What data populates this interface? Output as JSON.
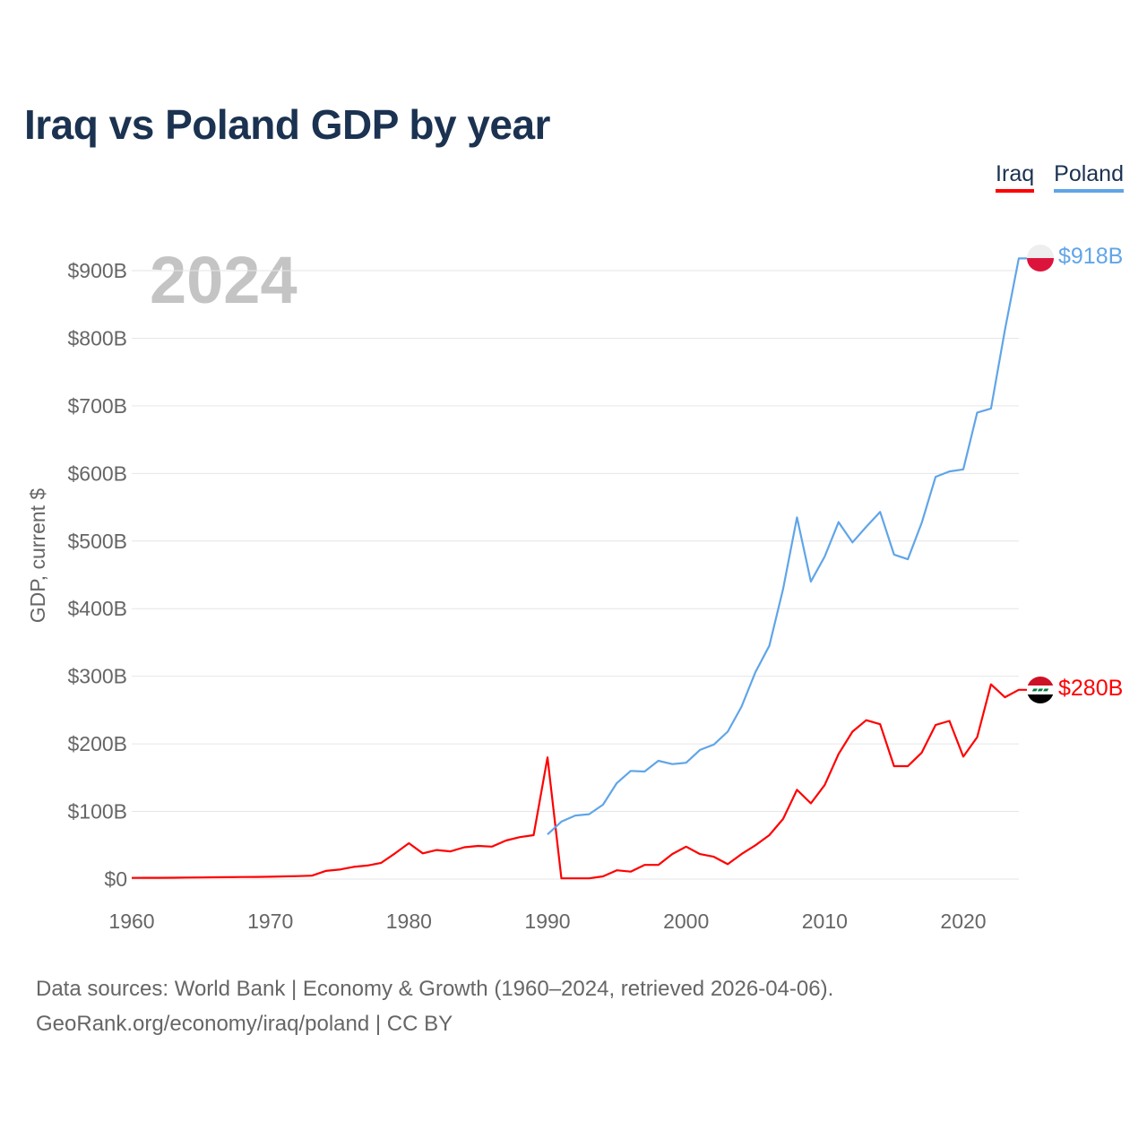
{
  "title": "Iraq vs Poland GDP by year",
  "legend": [
    {
      "label": "Iraq",
      "color": "#ff0000"
    },
    {
      "label": "Poland",
      "color": "#60a5e8"
    }
  ],
  "year_overlay": "2024",
  "source_line1": "Data sources: World Bank | Economy & Growth (1960–2024, retrieved 2026-04-06).",
  "source_line2": "GeoRank.org/economy/iraq/poland | CC BY",
  "end_labels": {
    "iraq": "$280B",
    "poland": "$918B"
  },
  "chart_data": {
    "type": "line",
    "title": "Iraq vs Poland GDP by year",
    "xlabel": "",
    "ylabel": "GDP, current $",
    "xlim": [
      1960,
      2024
    ],
    "ylim": [
      0,
      900
    ],
    "x_ticks": [
      1960,
      1970,
      1980,
      1990,
      2000,
      2010,
      2020
    ],
    "x_tick_labels": [
      "1960",
      "1970",
      "1980",
      "1990",
      "2000",
      "2010",
      "2020"
    ],
    "y_ticks": [
      0,
      100,
      200,
      300,
      400,
      500,
      600,
      700,
      800,
      900
    ],
    "y_tick_labels": [
      "$0",
      "$100B",
      "$200B",
      "$300B",
      "$400B",
      "$500B",
      "$600B",
      "$700B",
      "$800B",
      "$900B"
    ],
    "grid": true,
    "legend_position": "top-right",
    "series": [
      {
        "name": "Iraq",
        "color": "#ff0000",
        "start_year": 1960,
        "values": [
          1.7,
          1.8,
          1.9,
          2.0,
          2.2,
          2.4,
          2.6,
          2.8,
          3.0,
          3.2,
          3.5,
          4.0,
          4.4,
          5.1,
          12,
          14,
          18,
          20,
          24,
          38,
          53,
          38,
          43,
          41,
          47,
          49,
          48,
          57,
          62,
          65,
          180,
          1,
          1,
          1,
          4,
          13,
          11,
          21,
          21,
          37,
          48,
          37,
          33,
          22,
          37,
          50,
          65,
          89,
          132,
          112,
          139,
          185,
          218,
          235,
          229,
          167,
          167,
          187,
          228,
          234,
          181,
          210,
          288,
          269,
          280
        ]
      },
      {
        "name": "Poland",
        "color": "#60a5e8",
        "start_year": 1990,
        "values": [
          66,
          85,
          94,
          96,
          110,
          142,
          160,
          159,
          175,
          170,
          172,
          191,
          199,
          218,
          255,
          306,
          345,
          429,
          535,
          440,
          477,
          528,
          498,
          521,
          543,
          480,
          473,
          527,
          595,
          603,
          606,
          690,
          696,
          812,
          918
        ]
      }
    ]
  }
}
